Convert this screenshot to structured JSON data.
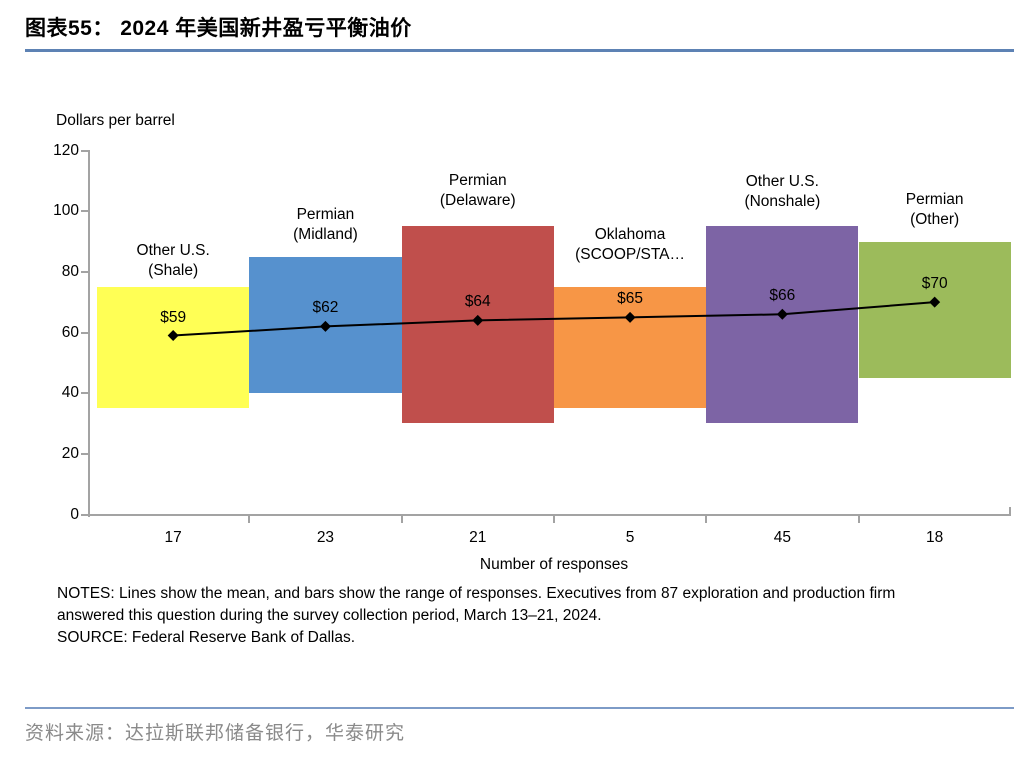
{
  "header": {
    "title": "图表55： 2024 年美国新井盈亏平衡油价"
  },
  "chart_data": {
    "type": "bar",
    "subtype": "range-bars-with-mean-line",
    "title": "2024 年美国新井盈亏平衡油价",
    "y_axis_title": "Dollars per barrel",
    "x_axis_title": "Number of responses",
    "ylim": [
      0,
      120
    ],
    "y_ticks": [
      0,
      20,
      40,
      60,
      80,
      100,
      120
    ],
    "grid": false,
    "legend": "none",
    "categories": [
      "Other U.S. (Shale)",
      "Permian (Midland)",
      "Permian (Delaware)",
      "Oklahoma (SCOOP/STA…",
      "Other U.S. (Nonshale)",
      "Permian (Other)"
    ],
    "series": [
      {
        "label_lines": [
          "Other U.S.",
          "(Shale)"
        ],
        "range_low": 35,
        "range_high": 75,
        "mean": 59,
        "mean_label": "$59",
        "responses": "17",
        "color": "#FFFF55"
      },
      {
        "label_lines": [
          "Permian",
          "(Midland)"
        ],
        "range_low": 40,
        "range_high": 85,
        "mean": 62,
        "mean_label": "$62",
        "responses": "23",
        "color": "#5691CE"
      },
      {
        "label_lines": [
          "Permian",
          "(Delaware)"
        ],
        "range_low": 30,
        "range_high": 95,
        "mean": 64,
        "mean_label": "$64",
        "responses": "21",
        "color": "#C04F4C"
      },
      {
        "label_lines": [
          "Oklahoma",
          "(SCOOP/STA…"
        ],
        "range_low": 35,
        "range_high": 75,
        "mean": 65,
        "mean_label": "$65",
        "responses": "5",
        "color": "#F79646"
      },
      {
        "label_lines": [
          "Other U.S.",
          "(Nonshale)"
        ],
        "range_low": 30,
        "range_high": 95,
        "mean": 66,
        "mean_label": "$66",
        "responses": "45",
        "color": "#7D64A5"
      },
      {
        "label_lines": [
          "Permian",
          "(Other)"
        ],
        "range_low": 45,
        "range_high": 90,
        "mean": 70,
        "mean_label": "$70",
        "responses": "18",
        "color": "#9CBB5B"
      }
    ],
    "line_color": "#000000",
    "axis_color": "#a3a3a3"
  },
  "notes": {
    "line1": "NOTES: Lines show the mean, and bars show the range of responses. Executives from 87 exploration and production firm",
    "line2": "answered this question during the survey collection period, March 13–21, 2024.",
    "line3": "SOURCE: Federal Reserve Bank of Dallas."
  },
  "footer": {
    "source_line": "资料来源：达拉斯联邦储备银行，华泰研究"
  }
}
